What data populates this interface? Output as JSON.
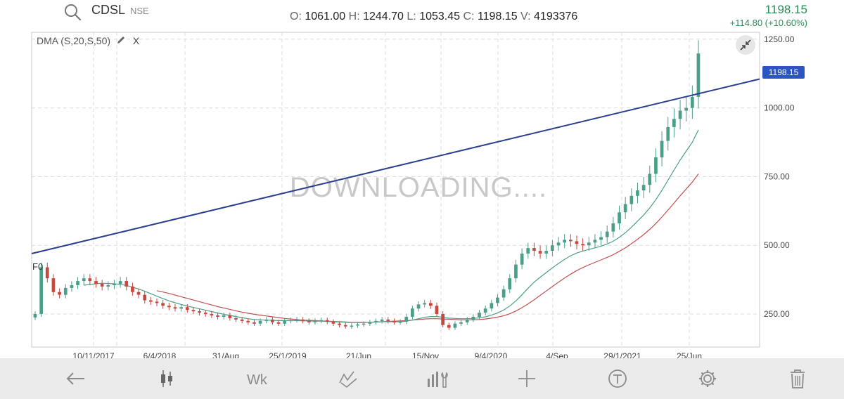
{
  "header": {
    "symbol": "CDSL",
    "exchange": "NSE",
    "ohlc": {
      "o_label": "O:",
      "o": "1061.00",
      "h_label": "H:",
      "h": "1244.70",
      "l_label": "L:",
      "l": "1053.45",
      "c_label": "C:",
      "c": "1198.15",
      "v_label": "V:",
      "v": "4193376"
    },
    "ltp": "1198.15",
    "change": "+114.80 (+10.60%)"
  },
  "indicator": {
    "label": "DMA (S,20,S,50)",
    "remove_label": "X"
  },
  "watermark": "DOWNLOADING....",
  "left_edge_label": "F0",
  "price_tag": "1198.15",
  "colors": {
    "up": "#4a9e8a",
    "down": "#c8473f",
    "trendline": "#2b3f8f",
    "ma20": "#4a9e8a",
    "ma50": "#c0504d",
    "price_tag_bg": "#2b55c4",
    "grid": "#dcdcdc"
  },
  "toolbar": [
    {
      "name": "back-arrow-icon"
    },
    {
      "name": "candlestick-icon"
    },
    {
      "name": "weekly-icon",
      "label": "Wk"
    },
    {
      "name": "draw-tools-icon"
    },
    {
      "name": "indicators-icon"
    },
    {
      "name": "crosshair-icon"
    },
    {
      "name": "text-icon"
    },
    {
      "name": "settings-gear-icon"
    },
    {
      "name": "trash-icon"
    }
  ],
  "chart_data": {
    "type": "candlestick",
    "y_ticks": [
      "1250.00",
      "1000.00",
      "750.00",
      "500.00",
      "250.00"
    ],
    "y_tick_values": [
      1250,
      1000,
      750,
      500,
      250
    ],
    "x_ticks": [
      "10/11/2017",
      "6/4/2018",
      "31/Aug",
      "25/1/2019",
      "21/Jun",
      "15/Nov",
      "9/4/2020",
      "4/Sep",
      "29/1/2021",
      "25/Jun"
    ],
    "ylim": [
      130,
      1275
    ],
    "grid": true,
    "last_price": 1198.15,
    "trendline": {
      "start_value": 470,
      "end_value": 1105
    },
    "closes": [
      250,
      420,
      380,
      330,
      320,
      345,
      355,
      370,
      380,
      370,
      360,
      350,
      355,
      360,
      370,
      350,
      330,
      320,
      300,
      295,
      290,
      280,
      275,
      270,
      275,
      265,
      260,
      255,
      250,
      245,
      240,
      245,
      235,
      230,
      225,
      220,
      215,
      225,
      230,
      220,
      215,
      225,
      228,
      230,
      225,
      220,
      225,
      228,
      222,
      215,
      210,
      205,
      208,
      212,
      215,
      220,
      225,
      230,
      225,
      220,
      222,
      240,
      270,
      285,
      290,
      280,
      250,
      210,
      200,
      215,
      220,
      230,
      240,
      255,
      270,
      290,
      310,
      340,
      380,
      430,
      470,
      490,
      480,
      470,
      480,
      500,
      510,
      520,
      515,
      505,
      500,
      510,
      520,
      530,
      550,
      580,
      620,
      650,
      680,
      700,
      720,
      760,
      820,
      880,
      930,
      960,
      990,
      1000,
      1040,
      1198
    ],
    "ma20": [
      null,
      null,
      null,
      null,
      null,
      null,
      null,
      null,
      355,
      358,
      360,
      362,
      361,
      360,
      358,
      354,
      348,
      341,
      333,
      324,
      315,
      306,
      298,
      291,
      285,
      279,
      274,
      269,
      264,
      259,
      254,
      249,
      245,
      241,
      237,
      233,
      230,
      229,
      228,
      227,
      226,
      226,
      226,
      226,
      225,
      225,
      224,
      224,
      223,
      222,
      221,
      220,
      219,
      219,
      219,
      220,
      221,
      222,
      222,
      222,
      222,
      224,
      228,
      233,
      238,
      241,
      241,
      238,
      235,
      234,
      233,
      233,
      234,
      236,
      240,
      246,
      254,
      265,
      279,
      298,
      320,
      344,
      366,
      384,
      401,
      418,
      434,
      449,
      462,
      472,
      479,
      485,
      491,
      497,
      505,
      515,
      529,
      546,
      566,
      588,
      610,
      636,
      666,
      700,
      737,
      774,
      810,
      843,
      875,
      920
    ],
    "ma50": [
      null,
      null,
      null,
      null,
      null,
      null,
      null,
      null,
      null,
      null,
      null,
      null,
      null,
      null,
      null,
      null,
      null,
      null,
      null,
      null,
      335,
      330,
      325,
      319,
      313,
      307,
      301,
      295,
      289,
      283,
      277,
      272,
      267,
      262,
      257,
      253,
      249,
      246,
      243,
      240,
      237,
      234,
      232,
      230,
      228,
      227,
      226,
      225,
      224,
      223,
      222,
      221,
      220,
      220,
      220,
      220,
      221,
      222,
      223,
      224,
      225,
      226,
      228,
      230,
      232,
      233,
      233,
      232,
      231,
      230,
      229,
      229,
      229,
      230,
      232,
      235,
      239,
      244,
      251,
      261,
      273,
      287,
      302,
      318,
      334,
      350,
      366,
      381,
      395,
      408,
      419,
      429,
      438,
      447,
      456,
      466,
      478,
      491,
      506,
      522,
      539,
      558,
      579,
      603,
      628,
      654,
      680,
      705,
      730,
      760
    ]
  }
}
